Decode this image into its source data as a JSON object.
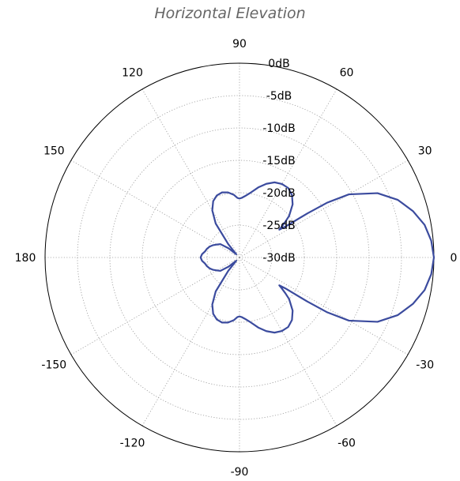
{
  "chart_data": {
    "type": "polar-line",
    "title": "Horizontal Elevation",
    "angle_unit": "degrees",
    "angle_ticks": [
      {
        "deg": 0,
        "label": "0"
      },
      {
        "deg": 30,
        "label": "30"
      },
      {
        "deg": 60,
        "label": "60"
      },
      {
        "deg": 90,
        "label": "90"
      },
      {
        "deg": 120,
        "label": "120"
      },
      {
        "deg": 150,
        "label": "150"
      },
      {
        "deg": 180,
        "label": "180"
      },
      {
        "deg": -150,
        "label": "-150"
      },
      {
        "deg": -120,
        "label": "-120"
      },
      {
        "deg": -90,
        "label": "-90"
      },
      {
        "deg": -60,
        "label": "-60"
      },
      {
        "deg": -30,
        "label": "-30"
      }
    ],
    "radial_range_db": [
      -30,
      0
    ],
    "radial_ticks": [
      {
        "db": 0,
        "label": "0dB"
      },
      {
        "db": -5,
        "label": "-5dB"
      },
      {
        "db": -10,
        "label": "-10dB"
      },
      {
        "db": -15,
        "label": "-15dB"
      },
      {
        "db": -20,
        "label": "-20dB"
      },
      {
        "db": -25,
        "label": "-25dB"
      },
      {
        "db": -30,
        "label": "-30dB"
      }
    ],
    "grid": true,
    "line_color": "#3b4b9e",
    "series": [
      {
        "angles_deg": [
          0,
          5,
          10,
          15,
          20,
          25,
          30,
          32,
          33,
          34,
          35,
          36,
          38,
          40,
          45,
          50,
          55,
          60,
          65,
          70,
          75,
          80,
          85,
          88,
          90,
          92,
          95,
          100,
          105,
          110,
          115,
          120,
          125,
          130,
          135,
          140,
          145,
          150,
          155,
          160,
          165,
          170,
          175,
          180,
          -175,
          -170,
          -165,
          -160,
          -155,
          -150,
          -145,
          -140,
          -135,
          -130,
          -125,
          -120,
          -115,
          -110,
          -105,
          -100,
          -95,
          -92,
          -90,
          -88,
          -85,
          -80,
          -75,
          -70,
          -65,
          -60,
          -55,
          -50,
          -45,
          -40,
          -38,
          -36,
          -35,
          -34,
          -33,
          -32,
          -30,
          -25,
          -20,
          -15,
          -10,
          -5,
          0
        ],
        "values_db": [
          0.0,
          -0.3,
          -1.0,
          -2.3,
          -4.0,
          -6.5,
          -10.5,
          -14.0,
          -17.5,
          -21.5,
          -22.5,
          -22.0,
          -21.0,
          -20.0,
          -18.4,
          -17.4,
          -16.9,
          -16.9,
          -17.2,
          -17.9,
          -18.8,
          -19.8,
          -20.5,
          -20.8,
          -20.9,
          -20.8,
          -20.3,
          -19.8,
          -19.6,
          -19.8,
          -20.4,
          -21.6,
          -23.6,
          -27.3,
          -29.3,
          -27.8,
          -26.4,
          -26.0,
          -25.5,
          -25.1,
          -24.8,
          -24.6,
          -24.2,
          -24.0,
          -24.2,
          -24.6,
          -24.8,
          -25.1,
          -25.5,
          -26.0,
          -26.4,
          -27.8,
          -29.3,
          -27.3,
          -23.6,
          -21.6,
          -20.4,
          -19.8,
          -19.6,
          -19.8,
          -20.3,
          -20.8,
          -20.9,
          -20.8,
          -20.5,
          -19.8,
          -18.8,
          -17.9,
          -17.2,
          -16.9,
          -16.9,
          -17.4,
          -18.4,
          -20.0,
          -21.0,
          -22.0,
          -22.5,
          -21.5,
          -17.5,
          -14.0,
          -10.5,
          -6.5,
          -4.0,
          -2.3,
          -1.0,
          -0.3,
          0.0
        ]
      }
    ]
  }
}
